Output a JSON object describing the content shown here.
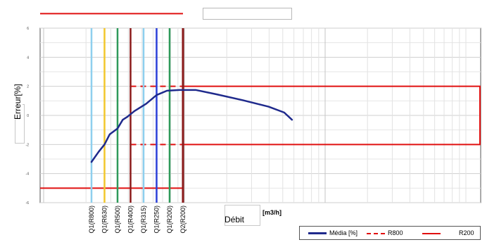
{
  "chart_data": {
    "type": "line",
    "title": "",
    "xlabel": "Débit",
    "xunit": "[m3/h]",
    "ylabel": "Erreur[%]",
    "ylim": [
      -6,
      6
    ],
    "yticks": [
      -6,
      -4,
      -2,
      0,
      2,
      4,
      6
    ],
    "xscale": "log",
    "grid": true,
    "legend_position": "bottom-right",
    "x_markers": [
      {
        "label": "Q1(R800)",
        "color": "#8ecfee"
      },
      {
        "label": "Q1(R630)",
        "color": "#f2c72c"
      },
      {
        "label": "Q1(R500)",
        "color": "#2f9a5a"
      },
      {
        "label": "Q1(R400)",
        "color": "#8b1a1a"
      },
      {
        "label": "Q1(R315)",
        "color": "#8ecfee"
      },
      {
        "label": "Q1(R250)",
        "color": "#2a3fd8"
      },
      {
        "label": "Q1(R200)",
        "color": "#2f9a5a"
      },
      {
        "label": "Q2(R200)",
        "color": "#8b1a1a"
      }
    ],
    "series": [
      {
        "name": "Média [%]",
        "color": "#1f2a8c",
        "x_index": [
          0.0,
          0.55,
          1.0,
          1.4,
          2.0,
          2.4,
          2.75,
          3.3,
          4.2,
          5.0,
          5.8,
          6.8,
          8.0,
          9.6,
          11.6,
          13.6,
          14.8,
          15.4
        ],
        "values": [
          -3.2,
          -2.5,
          -2.0,
          -1.3,
          -0.9,
          -0.3,
          -0.1,
          0.3,
          0.8,
          1.4,
          1.7,
          1.75,
          1.75,
          1.45,
          1.05,
          0.6,
          0.2,
          -0.3
        ]
      }
    ],
    "limits": [
      {
        "name": "R800",
        "style": "dashed",
        "color": "#e01010",
        "upper": 2,
        "lower": -2
      },
      {
        "name": "R200",
        "style": "solid",
        "color": "#e01010",
        "upper": 2,
        "lower": -2,
        "upper_low_range": 7,
        "lower_low_range": -5
      }
    ]
  }
}
